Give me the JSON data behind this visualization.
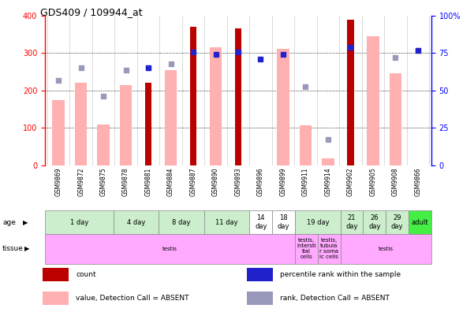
{
  "title": "GDS409 / 109944_at",
  "samples": [
    "GSM9869",
    "GSM9872",
    "GSM9875",
    "GSM9878",
    "GSM9881",
    "GSM9884",
    "GSM9887",
    "GSM9890",
    "GSM9893",
    "GSM9896",
    "GSM9899",
    "GSM9911",
    "GSM9914",
    "GSM9902",
    "GSM9905",
    "GSM9908",
    "GSM9866"
  ],
  "count_values": [
    null,
    null,
    null,
    null,
    220,
    null,
    370,
    null,
    365,
    null,
    null,
    null,
    null,
    390,
    null,
    null,
    null
  ],
  "pink_bar_values": [
    175,
    220,
    110,
    215,
    null,
    255,
    null,
    315,
    null,
    null,
    311,
    108,
    18,
    null,
    345,
    245,
    null
  ],
  "blue_dot_values_present": [
    null,
    null,
    null,
    null,
    260,
    null,
    303,
    296,
    303,
    283,
    297,
    null,
    null,
    315,
    null,
    null,
    307
  ],
  "lavender_dot_values": [
    228,
    260,
    185,
    255,
    260,
    272,
    null,
    null,
    null,
    null,
    null,
    210,
    70,
    null,
    null,
    287,
    307
  ],
  "bar_color_red": "#bb0000",
  "bar_color_pink": "#ffb0b0",
  "dot_color_blue": "#2222cc",
  "dot_color_lavender": "#9999bb",
  "age_groups": [
    {
      "label": "1 day",
      "start": 0,
      "end": 2,
      "color": "#cceecc"
    },
    {
      "label": "4 day",
      "start": 3,
      "end": 4,
      "color": "#cceecc"
    },
    {
      "label": "8 day",
      "start": 5,
      "end": 6,
      "color": "#cceecc"
    },
    {
      "label": "11 day",
      "start": 7,
      "end": 8,
      "color": "#cceecc"
    },
    {
      "label": "14\nday",
      "start": 9,
      "end": 9,
      "color": "#ffffff"
    },
    {
      "label": "18\nday",
      "start": 10,
      "end": 10,
      "color": "#ffffff"
    },
    {
      "label": "19 day",
      "start": 11,
      "end": 12,
      "color": "#cceecc"
    },
    {
      "label": "21\nday",
      "start": 13,
      "end": 13,
      "color": "#cceecc"
    },
    {
      "label": "26\nday",
      "start": 14,
      "end": 14,
      "color": "#cceecc"
    },
    {
      "label": "29\nday",
      "start": 15,
      "end": 15,
      "color": "#cceecc"
    },
    {
      "label": "adult",
      "start": 16,
      "end": 16,
      "color": "#44ee44"
    }
  ],
  "tissue_groups": [
    {
      "label": "testis",
      "start": 0,
      "end": 10,
      "color": "#ffaaff"
    },
    {
      "label": "testis,\nintersti\ntial\ncells",
      "start": 11,
      "end": 11,
      "color": "#ffaaff"
    },
    {
      "label": "testis,\ntubula\nr soma\nic cells",
      "start": 12,
      "end": 12,
      "color": "#ffaaff"
    },
    {
      "label": "testis",
      "start": 13,
      "end": 16,
      "color": "#ffaaff"
    }
  ],
  "legend_items": [
    {
      "color": "#bb0000",
      "label": "count"
    },
    {
      "color": "#2222cc",
      "label": "percentile rank within the sample"
    },
    {
      "color": "#ffb0b0",
      "label": "value, Detection Call = ABSENT"
    },
    {
      "color": "#9999bb",
      "label": "rank, Detection Call = ABSENT"
    }
  ]
}
